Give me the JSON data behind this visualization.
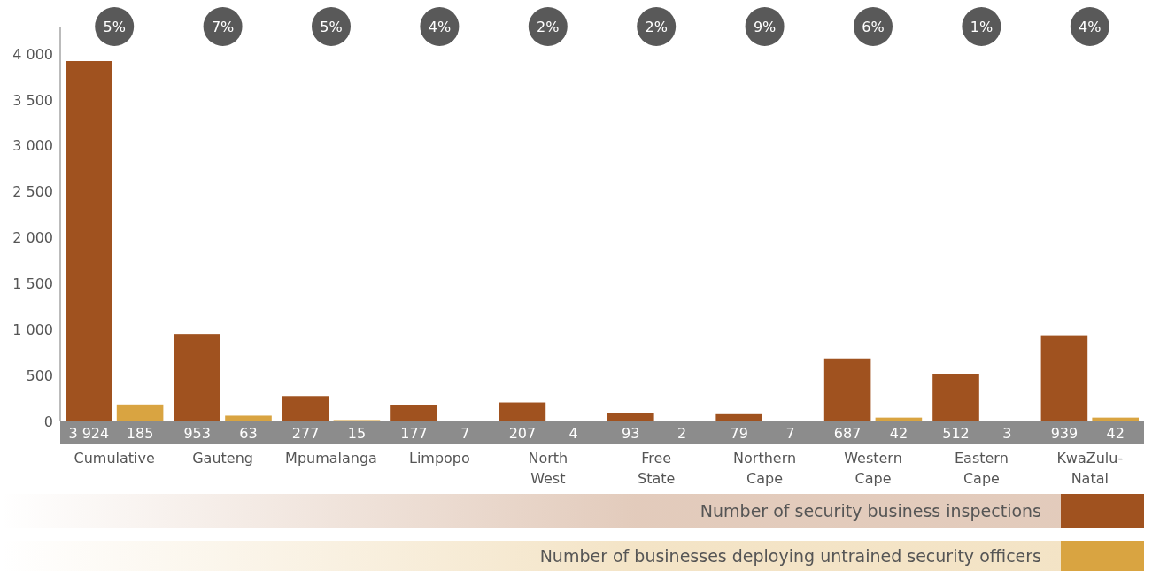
{
  "chart_data": {
    "type": "bar",
    "categories": [
      "Cumulative",
      "Gauteng",
      "Mpumalanga",
      "Limpopo",
      "North West",
      "Free State",
      "Northern Cape",
      "Western Cape",
      "Eastern Cape",
      "KwaZulu-Natal"
    ],
    "series": [
      {
        "name": "Number of security business inspections",
        "color": "#a0521f",
        "values": [
          3924,
          953,
          277,
          177,
          207,
          93,
          79,
          687,
          512,
          939
        ],
        "value_labels": [
          "3 924",
          "953",
          "277",
          "177",
          "207",
          "93",
          "79",
          "687",
          "512",
          "939"
        ]
      },
      {
        "name": "Number of businesses deploying untrained security officers",
        "color": "#d9a441",
        "values": [
          185,
          63,
          15,
          7,
          4,
          2,
          7,
          42,
          3,
          42
        ],
        "value_labels": [
          "185",
          "63",
          "15",
          "7",
          "4",
          "2",
          "7",
          "42",
          "3",
          "42"
        ]
      }
    ],
    "ylim": [
      0,
      4300
    ],
    "yticks": [
      {
        "value": 0,
        "label": "0"
      },
      {
        "value": 500,
        "label": "500"
      },
      {
        "value": 1000,
        "label": "1 000"
      },
      {
        "value": 1500,
        "label": "1 500"
      },
      {
        "value": 2000,
        "label": "2 000"
      },
      {
        "value": 2500,
        "label": "2 500"
      },
      {
        "value": 3000,
        "label": "3 000"
      },
      {
        "value": 3500,
        "label": "3 500"
      },
      {
        "value": 4000,
        "label": "4 000"
      }
    ],
    "annotations": [
      "5%",
      "7%",
      "5%",
      "4%",
      "2%",
      "2%",
      "9%",
      "6%",
      "1%",
      "4%"
    ],
    "legend": "bottom",
    "grid": false
  }
}
